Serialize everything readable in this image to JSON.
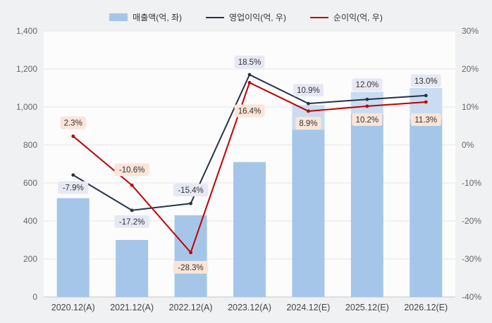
{
  "chart_data": {
    "type": "bar+line",
    "subtype": "combo chart with dual value axes, bars on left axis, two lines on right percentage axis",
    "categories": [
      "2020.12(A)",
      "2021.12(A)",
      "2022.12(A)",
      "2023.12(A)",
      "2024.12(E)",
      "2025.12(E)",
      "2026.12(E)"
    ],
    "bar_series": {
      "id": "revenue",
      "name": "매출액(억, 좌)",
      "axis": "left",
      "values": [
        520,
        300,
        430,
        710,
        1010,
        1080,
        1100
      ],
      "split_at": [
        null,
        null,
        null,
        null,
        880,
        960,
        935
      ],
      "color": "#a5c6e9",
      "color_light": "#c9dcf1"
    },
    "line_series": [
      {
        "id": "operating-profit",
        "name": "영업이익(억, 우)",
        "axis": "right",
        "values": [
          -7.9,
          -17.2,
          -15.4,
          18.5,
          10.9,
          12.0,
          13.0
        ],
        "labels": [
          "-7.9%",
          "-17.2%",
          "-15.4%",
          "18.5%",
          "10.9%",
          "12.0%",
          "13.0%"
        ],
        "label_dy": [
          18,
          16,
          -19,
          -18,
          -19,
          -21,
          -21
        ],
        "color": "#243447",
        "label_bg": "#e6e9f4"
      },
      {
        "id": "net-profit",
        "name": "순이익(억, 우)",
        "axis": "right",
        "values": [
          2.3,
          -10.6,
          -28.3,
          16.4,
          8.9,
          10.2,
          11.3
        ],
        "labels": [
          "2.3%",
          "-10.6%",
          "-28.3%",
          "16.4%",
          "8.9%",
          "10.2%",
          "11.3%"
        ],
        "label_dy": [
          -19,
          -22,
          21,
          40,
          17,
          19,
          25
        ],
        "color": "#c00000",
        "label_bg": "#fbe5d8"
      }
    ],
    "left_axis": {
      "min": 0,
      "max": 1400,
      "step": 200,
      "tick_labels": [
        "0",
        "200",
        "400",
        "600",
        "800",
        "1,000",
        "1,200",
        "1,400"
      ]
    },
    "right_axis": {
      "min": -40,
      "max": 30,
      "step": 10,
      "tick_labels": [
        "-40%",
        "-30%",
        "-20%",
        "-10%",
        "0%",
        "10%",
        "20%",
        "30%"
      ]
    },
    "grid": true,
    "legend_position": "top",
    "plot_bg": "#fcfcfc",
    "page_bg": "#f0f1f2",
    "label_text_color": "#333333",
    "axis_text_color": "#666666",
    "category_text_color": "#444444"
  }
}
